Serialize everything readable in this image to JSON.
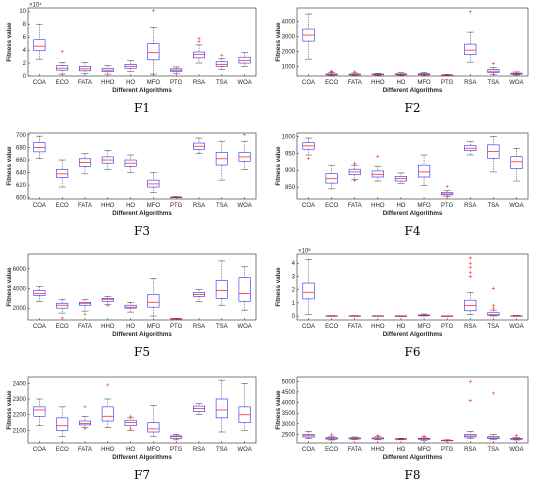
{
  "chart_data": [
    {
      "panel": "F1",
      "type": "boxplot",
      "caption": "F1",
      "xlabel": "Different Algorithms",
      "ylabel": "Fitness value",
      "exponent_label": "×10⁴",
      "categories": [
        "COA",
        "ECO",
        "FATA",
        "HHO",
        "HO",
        "MFO",
        "PTG",
        "RSA",
        "TSA",
        "WOA"
      ],
      "ylim": [
        0,
        10.5
      ],
      "yticks": [
        0,
        2,
        4,
        6,
        8,
        10
      ],
      "boxes": [
        {
          "min": 2.6,
          "q1": 3.9,
          "median": 4.6,
          "q3": 5.6,
          "max": 8.0,
          "outliers": []
        },
        {
          "min": 0.3,
          "q1": 0.9,
          "median": 1.2,
          "q3": 1.6,
          "max": 2.1,
          "outliers": [
            3.8
          ]
        },
        {
          "min": 0.4,
          "q1": 0.8,
          "median": 1.1,
          "q3": 1.5,
          "max": 2.1,
          "outliers": []
        },
        {
          "min": 0.3,
          "q1": 0.7,
          "median": 0.9,
          "q3": 1.2,
          "max": 1.6,
          "outliers": []
        },
        {
          "min": 0.7,
          "q1": 1.2,
          "median": 1.5,
          "q3": 1.8,
          "max": 2.4,
          "outliers": []
        },
        {
          "min": 0.3,
          "q1": 2.5,
          "median": 3.6,
          "q3": 5.0,
          "max": 7.5,
          "outliers": [
            10.1
          ]
        },
        {
          "min": 0.4,
          "q1": 0.7,
          "median": 0.9,
          "q3": 1.1,
          "max": 1.4,
          "outliers": []
        },
        {
          "min": 2.0,
          "q1": 2.8,
          "median": 3.3,
          "q3": 3.7,
          "max": 4.8,
          "outliers": [
            5.3,
            5.8
          ]
        },
        {
          "min": 1.0,
          "q1": 1.5,
          "median": 1.8,
          "q3": 2.2,
          "max": 2.7,
          "outliers": [
            3.2
          ]
        },
        {
          "min": 1.5,
          "q1": 2.0,
          "median": 2.4,
          "q3": 2.9,
          "max": 3.6,
          "outliers": []
        }
      ]
    },
    {
      "panel": "F2",
      "type": "boxplot",
      "caption": "F2",
      "xlabel": "Different Algorithms",
      "ylabel": "Fitness value",
      "exponent_label": "",
      "categories": [
        "COA",
        "ECO",
        "FATA",
        "HHO",
        "HO",
        "MFO",
        "PTG",
        "RSA",
        "TSA",
        "WOA"
      ],
      "ylim": [
        380,
        4900
      ],
      "yticks": [
        1000,
        2000,
        3000,
        4000
      ],
      "boxes": [
        {
          "min": 1500,
          "q1": 2700,
          "median": 3100,
          "q3": 3500,
          "max": 4500,
          "outliers": []
        },
        {
          "min": 400,
          "q1": 450,
          "median": 480,
          "q3": 520,
          "max": 600,
          "outliers": [
            650,
            700
          ]
        },
        {
          "min": 410,
          "q1": 450,
          "median": 470,
          "q3": 510,
          "max": 580,
          "outliers": [
            650
          ]
        },
        {
          "min": 420,
          "q1": 460,
          "median": 480,
          "q3": 510,
          "max": 560,
          "outliers": []
        },
        {
          "min": 420,
          "q1": 460,
          "median": 490,
          "q3": 520,
          "max": 600,
          "outliers": []
        },
        {
          "min": 400,
          "q1": 460,
          "median": 490,
          "q3": 530,
          "max": 620,
          "outliers": []
        },
        {
          "min": 400,
          "q1": 430,
          "median": 440,
          "q3": 460,
          "max": 480,
          "outliers": []
        },
        {
          "min": 1300,
          "q1": 1800,
          "median": 2100,
          "q3": 2500,
          "max": 3300,
          "outliers": [
            4650
          ]
        },
        {
          "min": 500,
          "q1": 620,
          "median": 700,
          "q3": 800,
          "max": 950,
          "outliers": [
            1200
          ]
        },
        {
          "min": 450,
          "q1": 500,
          "median": 530,
          "q3": 570,
          "max": 650,
          "outliers": []
        }
      ]
    },
    {
      "panel": "F3",
      "type": "boxplot",
      "caption": "F3",
      "xlabel": "Different Algorithms",
      "ylabel": "Fitness value",
      "exponent_label": "",
      "categories": [
        "COA",
        "ECO",
        "FATA",
        "HHO",
        "HO",
        "MFO",
        "PTG",
        "RSA",
        "TSA",
        "WOA"
      ],
      "ylim": [
        598,
        703
      ],
      "yticks": [
        600,
        620,
        640,
        660,
        680,
        700
      ],
      "boxes": [
        {
          "min": 662,
          "q1": 673,
          "median": 680,
          "q3": 688,
          "max": 698,
          "outliers": []
        },
        {
          "min": 617,
          "q1": 632,
          "median": 638,
          "q3": 645,
          "max": 660,
          "outliers": []
        },
        {
          "min": 638,
          "q1": 650,
          "median": 656,
          "q3": 662,
          "max": 670,
          "outliers": []
        },
        {
          "min": 645,
          "q1": 655,
          "median": 660,
          "q3": 665,
          "max": 675,
          "outliers": []
        },
        {
          "min": 640,
          "q1": 650,
          "median": 655,
          "q3": 660,
          "max": 668,
          "outliers": []
        },
        {
          "min": 608,
          "q1": 617,
          "median": 622,
          "q3": 628,
          "max": 640,
          "outliers": []
        },
        {
          "min": 600,
          "q1": 600,
          "median": 601,
          "q3": 601,
          "max": 602,
          "outliers": []
        },
        {
          "min": 670,
          "q1": 677,
          "median": 682,
          "q3": 687,
          "max": 695,
          "outliers": []
        },
        {
          "min": 628,
          "q1": 652,
          "median": 662,
          "q3": 672,
          "max": 690,
          "outliers": []
        },
        {
          "min": 645,
          "q1": 658,
          "median": 665,
          "q3": 672,
          "max": 690,
          "outliers": [
            701
          ]
        }
      ]
    },
    {
      "panel": "F4",
      "type": "boxplot",
      "caption": "F4",
      "xlabel": "Different Algorithms",
      "ylabel": "Fitness value",
      "exponent_label": "",
      "categories": [
        "COA",
        "ECO",
        "FATA",
        "HHO",
        "HO",
        "MFO",
        "PTG",
        "RSA",
        "TSA",
        "WOA"
      ],
      "ylim": [
        815,
        1010
      ],
      "yticks": [
        850,
        900,
        950,
        1000
      ],
      "boxes": [
        {
          "min": 945,
          "q1": 962,
          "median": 972,
          "q3": 982,
          "max": 995,
          "outliers": [
            935
          ]
        },
        {
          "min": 845,
          "q1": 862,
          "median": 875,
          "q3": 890,
          "max": 915,
          "outliers": []
        },
        {
          "min": 872,
          "q1": 887,
          "median": 895,
          "q3": 903,
          "max": 915,
          "outliers": [
            920,
            870
          ]
        },
        {
          "min": 868,
          "q1": 880,
          "median": 888,
          "q3": 898,
          "max": 912,
          "outliers": [
            940
          ]
        },
        {
          "min": 860,
          "q1": 868,
          "median": 875,
          "q3": 882,
          "max": 892,
          "outliers": []
        },
        {
          "min": 855,
          "q1": 880,
          "median": 895,
          "q3": 915,
          "max": 945,
          "outliers": []
        },
        {
          "min": 822,
          "q1": 827,
          "median": 830,
          "q3": 834,
          "max": 840,
          "outliers": [
            852
          ]
        },
        {
          "min": 945,
          "q1": 958,
          "median": 965,
          "q3": 973,
          "max": 985,
          "outliers": []
        },
        {
          "min": 895,
          "q1": 935,
          "median": 955,
          "q3": 975,
          "max": 1000,
          "outliers": []
        },
        {
          "min": 868,
          "q1": 905,
          "median": 925,
          "q3": 940,
          "max": 965,
          "outliers": []
        }
      ]
    },
    {
      "panel": "F5",
      "type": "boxplot",
      "caption": "F5",
      "xlabel": "Different Algorithms",
      "ylabel": "Fitness value",
      "exponent_label": "",
      "categories": [
        "COA",
        "ECO",
        "FATA",
        "HHO",
        "HO",
        "MFO",
        "PTG",
        "RSA",
        "TSA",
        "WOA"
      ],
      "ylim": [
        800,
        7500
      ],
      "yticks": [
        2000,
        4000,
        6000
      ],
      "boxes": [
        {
          "min": 2700,
          "q1": 3300,
          "median": 3500,
          "q3": 3800,
          "max": 4200,
          "outliers": []
        },
        {
          "min": 1500,
          "q1": 2000,
          "median": 2300,
          "q3": 2500,
          "max": 2900,
          "outliers": [
            1000
          ]
        },
        {
          "min": 1700,
          "q1": 2300,
          "median": 2500,
          "q3": 2600,
          "max": 2900,
          "outliers": [
            1400
          ]
        },
        {
          "min": 2400,
          "q1": 2700,
          "median": 2900,
          "q3": 3000,
          "max": 3200,
          "outliers": [
            2300
          ]
        },
        {
          "min": 1600,
          "q1": 2000,
          "median": 2100,
          "q3": 2300,
          "max": 2600,
          "outliers": []
        },
        {
          "min": 1200,
          "q1": 2100,
          "median": 2600,
          "q3": 3400,
          "max": 5000,
          "outliers": []
        },
        {
          "min": 900,
          "q1": 920,
          "median": 930,
          "q3": 950,
          "max": 980,
          "outliers": []
        },
        {
          "min": 2700,
          "q1": 3200,
          "median": 3400,
          "q3": 3600,
          "max": 3900,
          "outliers": []
        },
        {
          "min": 2300,
          "q1": 3000,
          "median": 3800,
          "q3": 4800,
          "max": 6800,
          "outliers": []
        },
        {
          "min": 1800,
          "q1": 2700,
          "median": 3500,
          "q3": 5100,
          "max": 6200,
          "outliers": []
        }
      ]
    },
    {
      "panel": "F6",
      "type": "boxplot",
      "caption": "F6",
      "xlabel": "Different Algorithms",
      "ylabel": "Fitness value",
      "exponent_label": "×10⁸",
      "categories": [
        "COA",
        "ECO",
        "FATA",
        "HHO",
        "HO",
        "MFO",
        "PTG",
        "RSA",
        "TSA",
        "WOA"
      ],
      "ylim": [
        -0.3,
        4.7
      ],
      "yticks": [
        0,
        1,
        2,
        3,
        4
      ],
      "boxes": [
        {
          "min": 0.1,
          "q1": 1.3,
          "median": 1.8,
          "q3": 2.5,
          "max": 4.3,
          "outliers": []
        },
        {
          "min": 0.0,
          "q1": 0.0,
          "median": 0.01,
          "q3": 0.02,
          "max": 0.04,
          "outliers": []
        },
        {
          "min": 0.0,
          "q1": 0.0,
          "median": 0.01,
          "q3": 0.02,
          "max": 0.04,
          "outliers": []
        },
        {
          "min": 0.0,
          "q1": 0.0,
          "median": 0.01,
          "q3": 0.02,
          "max": 0.03,
          "outliers": []
        },
        {
          "min": 0.0,
          "q1": 0.0,
          "median": 0.01,
          "q3": 0.01,
          "max": 0.03,
          "outliers": []
        },
        {
          "min": 0.0,
          "q1": 0.02,
          "median": 0.05,
          "q3": 0.08,
          "max": 0.15,
          "outliers": []
        },
        {
          "min": 0.0,
          "q1": 0.0,
          "median": 0.0,
          "q3": 0.01,
          "max": 0.02,
          "outliers": []
        },
        {
          "min": 0.1,
          "q1": 0.4,
          "median": 0.8,
          "q3": 1.2,
          "max": 1.8,
          "outliers": [
            3.0,
            3.3,
            3.7,
            4.0,
            4.4
          ]
        },
        {
          "min": 0.0,
          "q1": 0.05,
          "median": 0.1,
          "q3": 0.25,
          "max": 0.45,
          "outliers": [
            0.6,
            0.8,
            2.1
          ]
        },
        {
          "min": 0.0,
          "q1": 0.0,
          "median": 0.01,
          "q3": 0.02,
          "max": 0.05,
          "outliers": []
        }
      ]
    },
    {
      "panel": "F7",
      "type": "boxplot",
      "caption": "F7",
      "xlabel": "Different Algorithms",
      "ylabel": "Fitness value",
      "exponent_label": "",
      "categories": [
        "COA",
        "ECO",
        "FATA",
        "HHO",
        "HO",
        "MFO",
        "PTG",
        "RSA",
        "TSA",
        "WOA"
      ],
      "ylim": [
        2020,
        2440
      ],
      "yticks": [
        2100,
        2200,
        2300,
        2400
      ],
      "boxes": [
        {
          "min": 2130,
          "q1": 2190,
          "median": 2230,
          "q3": 2250,
          "max": 2300,
          "outliers": []
        },
        {
          "min": 2060,
          "q1": 2100,
          "median": 2130,
          "q3": 2180,
          "max": 2250,
          "outliers": []
        },
        {
          "min": 2120,
          "q1": 2135,
          "median": 2145,
          "q3": 2160,
          "max": 2190,
          "outliers": [
            2250,
            2110
          ]
        },
        {
          "min": 2120,
          "q1": 2160,
          "median": 2190,
          "q3": 2250,
          "max": 2300,
          "outliers": [
            2390
          ]
        },
        {
          "min": 2100,
          "q1": 2130,
          "median": 2150,
          "q3": 2165,
          "max": 2180,
          "outliers": [
            2190,
            2110
          ]
        },
        {
          "min": 2060,
          "q1": 2090,
          "median": 2110,
          "q3": 2150,
          "max": 2260,
          "outliers": []
        },
        {
          "min": 2040,
          "q1": 2050,
          "median": 2060,
          "q3": 2065,
          "max": 2075,
          "outliers": []
        },
        {
          "min": 2200,
          "q1": 2220,
          "median": 2240,
          "q3": 2255,
          "max": 2270,
          "outliers": []
        },
        {
          "min": 2090,
          "q1": 2180,
          "median": 2230,
          "q3": 2300,
          "max": 2420,
          "outliers": []
        },
        {
          "min": 2100,
          "q1": 2150,
          "median": 2200,
          "q3": 2250,
          "max": 2400,
          "outliers": []
        }
      ]
    },
    {
      "panel": "F8",
      "type": "boxplot",
      "caption": "F8",
      "xlabel": "Different Algorithms",
      "ylabel": "Fitness value",
      "exponent_label": "",
      "categories": [
        "COA",
        "ECO",
        "FATA",
        "HHO",
        "HO",
        "MFO",
        "PTG",
        "RSA",
        "TSA",
        "WOA"
      ],
      "ylim": [
        2100,
        5200
      ],
      "yticks": [
        2500,
        3000,
        3500,
        4000,
        4500,
        5000
      ],
      "boxes": [
        {
          "min": 2300,
          "q1": 2380,
          "median": 2440,
          "q3": 2500,
          "max": 2650,
          "outliers": []
        },
        {
          "min": 2240,
          "q1": 2280,
          "median": 2310,
          "q3": 2350,
          "max": 2420,
          "outliers": [
            2500
          ]
        },
        {
          "min": 2260,
          "q1": 2290,
          "median": 2310,
          "q3": 2340,
          "max": 2380,
          "outliers": []
        },
        {
          "min": 2250,
          "q1": 2290,
          "median": 2310,
          "q3": 2340,
          "max": 2400,
          "outliers": [
            2450
          ]
        },
        {
          "min": 2250,
          "q1": 2270,
          "median": 2280,
          "q3": 2300,
          "max": 2320,
          "outliers": []
        },
        {
          "min": 2230,
          "q1": 2270,
          "median": 2290,
          "q3": 2320,
          "max": 2380,
          "outliers": [
            2420
          ]
        },
        {
          "min": 2200,
          "q1": 2210,
          "median": 2220,
          "q3": 2230,
          "max": 2250,
          "outliers": []
        },
        {
          "min": 2300,
          "q1": 2380,
          "median": 2430,
          "q3": 2500,
          "max": 2650,
          "outliers": [
            4100,
            5000
          ]
        },
        {
          "min": 2250,
          "q1": 2300,
          "median": 2340,
          "q3": 2400,
          "max": 2500,
          "outliers": [
            4450
          ]
        },
        {
          "min": 2240,
          "q1": 2270,
          "median": 2290,
          "q3": 2320,
          "max": 2370,
          "outliers": [
            2450
          ]
        }
      ]
    }
  ],
  "colors": {
    "box": "#2b2bff",
    "median": "#ff2a2a",
    "outlier": "#ff2a2a",
    "whisker": "#222222",
    "axis": "#262626"
  }
}
